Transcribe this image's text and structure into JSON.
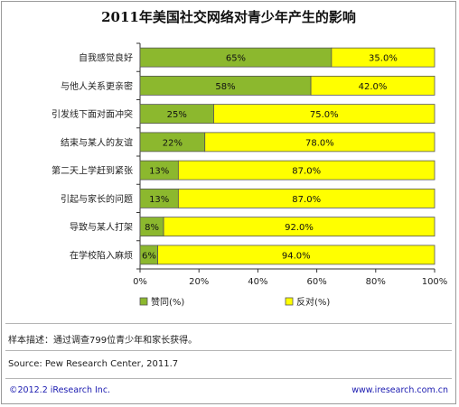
{
  "chart_data": {
    "type": "bar",
    "stacked": true,
    "orientation": "horizontal",
    "title": "2011年美国社交网络对青少年产生的影响",
    "categories": [
      "自我感觉良好",
      "与他人关系更亲密",
      "引发线下面对面冲突",
      "结束与某人的友谊",
      "第二天上学赶到紧张",
      "引起与家长的问题",
      "导致与某人打架",
      "在学校陷入麻烦"
    ],
    "series": [
      {
        "name": "赞同(%)",
        "color": "#8cb82e",
        "values": [
          65,
          58,
          25,
          22,
          13,
          13,
          8,
          6
        ],
        "labels": [
          "65%",
          "58%",
          "25%",
          "22%",
          "13%",
          "13%",
          "8%",
          "6%"
        ]
      },
      {
        "name": "反对(%)",
        "color": "#ffff00",
        "values": [
          35,
          42,
          75,
          78,
          87,
          87,
          92,
          94
        ],
        "labels": [
          "35.0%",
          "42.0%",
          "75.0%",
          "78.0%",
          "87.0%",
          "87.0%",
          "92.0%",
          "94.0%"
        ]
      }
    ],
    "x_ticks": [
      "0%",
      "20%",
      "40%",
      "60%",
      "80%",
      "100%"
    ],
    "xlim": [
      0,
      100
    ],
    "grid": false,
    "legend_position": "bottom"
  },
  "notes": {
    "sample": "样本描述：通过调查799位青少年和家长获得。",
    "source": "Source: Pew  Research Center, 2011.7"
  },
  "footer": {
    "copyright": "©2012.2 iResearch Inc.",
    "website": "www.iresearch.com.cn"
  }
}
